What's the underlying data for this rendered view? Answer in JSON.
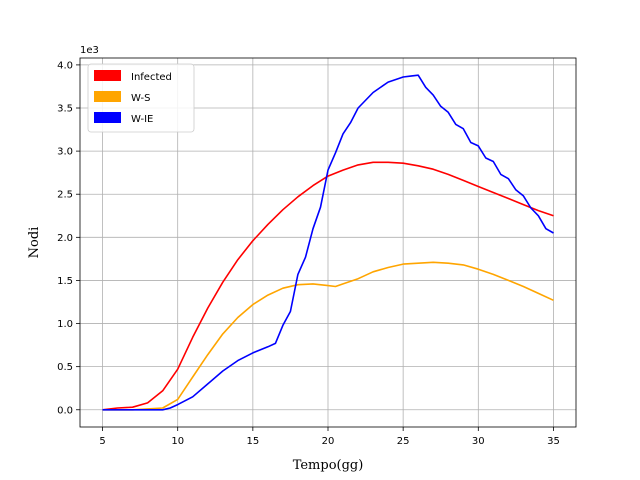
{
  "chart_data": {
    "type": "line",
    "xlabel": "Tempo(gg)",
    "ylabel": "Nodi",
    "y_offset_label": "1e3",
    "xlim": [
      3.5,
      36.5
    ],
    "ylim": [
      -0.2,
      4.08
    ],
    "xticks": [
      5,
      10,
      15,
      20,
      25,
      30,
      35
    ],
    "yticks": [
      0.0,
      0.5,
      1.0,
      1.5,
      2.0,
      2.5,
      3.0,
      3.5,
      4.0
    ],
    "xtick_labels": [
      "5",
      "10",
      "15",
      "20",
      "25",
      "30",
      "35"
    ],
    "ytick_labels": [
      "0.0",
      "0.5",
      "1.0",
      "1.5",
      "2.0",
      "2.5",
      "3.0",
      "3.5",
      "4.0"
    ],
    "grid": true,
    "legend_position": "top-left",
    "series": [
      {
        "name": "Infected",
        "color": "#ff0000",
        "x": [
          5,
          6,
          7,
          8,
          9,
          10,
          11,
          12,
          13,
          14,
          15,
          16,
          17,
          18,
          19,
          20,
          21,
          22,
          23,
          24,
          25,
          26,
          27,
          28,
          29,
          30,
          31,
          32,
          33,
          34,
          35
        ],
        "y": [
          0.0,
          0.02,
          0.03,
          0.08,
          0.22,
          0.47,
          0.84,
          1.18,
          1.48,
          1.74,
          1.96,
          2.15,
          2.32,
          2.47,
          2.6,
          2.71,
          2.78,
          2.84,
          2.87,
          2.87,
          2.86,
          2.83,
          2.79,
          2.73,
          2.66,
          2.59,
          2.52,
          2.45,
          2.38,
          2.31,
          2.25
        ]
      },
      {
        "name": "W-S",
        "color": "#ffa500",
        "x": [
          5,
          6,
          7,
          8,
          9,
          10,
          11,
          12,
          13,
          14,
          15,
          16,
          17,
          18,
          19,
          20,
          20.5,
          21,
          22,
          23,
          24,
          25,
          26,
          27,
          28,
          29,
          30,
          31,
          32,
          33,
          34,
          35
        ],
        "y": [
          0.0,
          0.0,
          0.0,
          0.01,
          0.02,
          0.12,
          0.38,
          0.64,
          0.88,
          1.07,
          1.22,
          1.33,
          1.41,
          1.45,
          1.46,
          1.44,
          1.43,
          1.46,
          1.52,
          1.6,
          1.65,
          1.69,
          1.7,
          1.71,
          1.7,
          1.68,
          1.63,
          1.57,
          1.5,
          1.43,
          1.35,
          1.27
        ]
      },
      {
        "name": "W-IE",
        "color": "#0000ff",
        "x": [
          5,
          6,
          7,
          8,
          9,
          9.5,
          10,
          11,
          12,
          13,
          14,
          15,
          16,
          16.5,
          17,
          17.5,
          18,
          18.5,
          19,
          19.5,
          20,
          20.5,
          21,
          21.5,
          22,
          23,
          24,
          25,
          25.5,
          26,
          26.5,
          27,
          27.5,
          28,
          28.5,
          29,
          29.5,
          30,
          30.5,
          31,
          31.5,
          32,
          32.5,
          33,
          33.5,
          34,
          34.5,
          35
        ],
        "y": [
          0.0,
          0.0,
          0.0,
          0.0,
          0.0,
          0.02,
          0.06,
          0.15,
          0.3,
          0.45,
          0.57,
          0.66,
          0.73,
          0.77,
          0.98,
          1.14,
          1.57,
          1.77,
          2.1,
          2.35,
          2.78,
          2.98,
          3.2,
          3.33,
          3.5,
          3.68,
          3.8,
          3.86,
          3.87,
          3.88,
          3.74,
          3.65,
          3.52,
          3.45,
          3.31,
          3.26,
          3.1,
          3.06,
          2.92,
          2.88,
          2.73,
          2.68,
          2.55,
          2.48,
          2.34,
          2.25,
          2.1,
          2.05
        ]
      }
    ]
  }
}
